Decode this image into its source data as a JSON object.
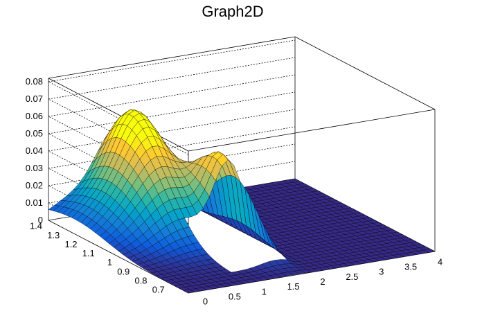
{
  "chart_data": {
    "type": "surface",
    "title": "Graph2D",
    "xlabel": "",
    "ylabel": "",
    "zlabel": "",
    "x_ticks": [
      "0",
      "0.5",
      "1",
      "1.5",
      "2",
      "2.5",
      "3",
      "3.5",
      "4"
    ],
    "y_ticks": [
      "0.7",
      "0.8",
      "0.9",
      "1",
      "1.1",
      "1.2",
      "1.3",
      "1.4"
    ],
    "z_ticks": [
      "0",
      "0.01",
      "0.02",
      "0.03",
      "0.04",
      "0.05",
      "0.06",
      "0.07",
      "0.08"
    ],
    "xlim": [
      -0.1,
      4.1
    ],
    "ylim": [
      0.62,
      1.42
    ],
    "zlim": [
      0,
      0.082
    ],
    "grid": true,
    "legend": "none",
    "colormap": [
      "#352a87",
      "#0f5cdd",
      "#1481d6",
      "#06a4ca",
      "#2eb7a4",
      "#87bf77",
      "#d1bb59",
      "#fec832",
      "#f9fb0e"
    ],
    "surface_shape": "ridge peaking near x=1.7, y=1.0 at about 0.047; shoulder near x=1.0, y=1.4 at about 0.058; hollow region 1.0<x<1.85, 0.75<y<0.97 below the surface; near zero for x>2"
  }
}
